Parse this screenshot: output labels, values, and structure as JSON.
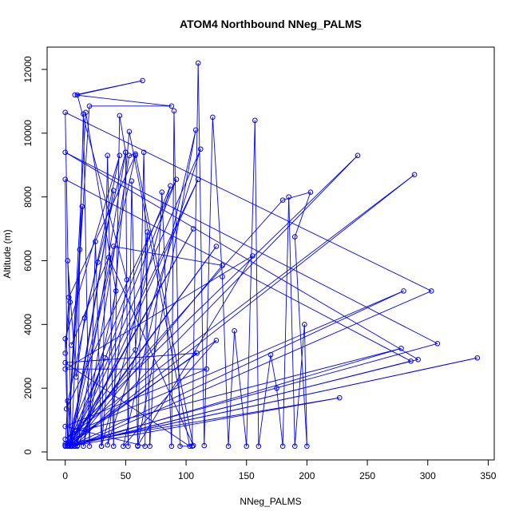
{
  "chart_data": {
    "type": "line",
    "title": "ATOM4 Northbound NNeg_PALMS",
    "xlabel": "NNeg_PALMS",
    "ylabel": "Altitude (m)",
    "xlim": [
      -15,
      355
    ],
    "ylim": [
      -250,
      12700
    ],
    "x_ticks": [
      0,
      50,
      100,
      150,
      200,
      250,
      300,
      350
    ],
    "y_ticks": [
      0,
      2000,
      4000,
      6000,
      8000,
      10000,
      12000
    ],
    "grid": false,
    "color": "#0000ff",
    "marker": "open-circle",
    "series": [
      {
        "points": [
          [
            0,
            180
          ],
          [
            2,
            1600
          ],
          [
            5,
            180
          ],
          [
            8,
            180
          ],
          [
            10,
            200
          ],
          [
            12,
            6350
          ],
          [
            15,
            10600
          ],
          [
            20,
            180
          ],
          [
            25,
            6600
          ],
          [
            30,
            180
          ],
          [
            35,
            9300
          ],
          [
            40,
            180
          ],
          [
            45,
            10550
          ],
          [
            50,
            9400
          ],
          [
            52,
            180
          ],
          [
            55,
            8500
          ],
          [
            60,
            180
          ],
          [
            65,
            9400
          ],
          [
            70,
            180
          ],
          [
            80,
            8150
          ],
          [
            88,
            180
          ],
          [
            90,
            10700
          ],
          [
            95,
            180
          ],
          [
            105,
            180
          ],
          [
            110,
            12200
          ],
          [
            115,
            200
          ],
          [
            122,
            10500
          ],
          [
            130,
            5500
          ],
          [
            135,
            180
          ],
          [
            140,
            3800
          ],
          [
            150,
            180
          ],
          [
            157,
            10400
          ],
          [
            160,
            180
          ],
          [
            170,
            3050
          ],
          [
            175,
            2000
          ],
          [
            180,
            180
          ],
          [
            185,
            8000
          ],
          [
            190,
            180
          ],
          [
            198,
            4000
          ],
          [
            200,
            180
          ],
          [
            190,
            6750
          ],
          [
            203,
            8150
          ],
          [
            180,
            7900
          ],
          [
            0,
            250
          ],
          [
            227,
            1700
          ],
          [
            5,
            180
          ],
          [
            278,
            3250
          ],
          [
            6,
            600
          ],
          [
            280,
            5050
          ],
          [
            4,
            180
          ],
          [
            292,
            2900
          ],
          [
            0,
            9400
          ],
          [
            308,
            3400
          ],
          [
            0,
            180
          ],
          [
            341,
            2950
          ],
          [
            3,
            200
          ],
          [
            289,
            8700
          ],
          [
            0,
            400
          ],
          [
            242,
            9300
          ],
          [
            8,
            180
          ],
          [
            303,
            5050
          ],
          [
            0,
            10650
          ],
          [
            5,
            180
          ],
          [
            286,
            2850
          ],
          [
            0,
            8550
          ],
          [
            2,
            180
          ],
          [
            20,
            10850
          ],
          [
            88,
            10850
          ],
          [
            8,
            11200
          ],
          [
            64,
            11650
          ],
          [
            10,
            11200
          ],
          [
            51,
            5400
          ],
          [
            35,
            220
          ],
          [
            112,
            9500
          ],
          [
            4,
            180
          ],
          [
            92,
            8550
          ],
          [
            1,
            1350
          ],
          [
            45,
            9300
          ],
          [
            0,
            3550
          ],
          [
            2,
            180
          ],
          [
            14,
            7700
          ],
          [
            5,
            200
          ],
          [
            40,
            8200
          ],
          [
            4,
            180
          ],
          [
            58,
            9300
          ],
          [
            3,
            4850
          ],
          [
            0,
            3100
          ],
          [
            4,
            4700
          ],
          [
            2,
            6000
          ],
          [
            9,
            2350
          ],
          [
            16,
            4200
          ],
          [
            27,
            5950
          ],
          [
            50,
            9400
          ],
          [
            10,
            180
          ],
          [
            110,
            8550
          ],
          [
            4,
            180
          ],
          [
            106,
            7000
          ],
          [
            5,
            180
          ],
          [
            125,
            6450
          ],
          [
            6,
            180
          ],
          [
            130,
            5850
          ],
          [
            40,
            6450
          ],
          [
            2,
            180
          ],
          [
            109,
            3100
          ],
          [
            0,
            2800
          ],
          [
            103,
            180
          ],
          [
            53,
            10050
          ],
          [
            30,
            180
          ],
          [
            87,
            8350
          ],
          [
            0,
            200
          ],
          [
            125,
            3500
          ],
          [
            48,
            180
          ],
          [
            108,
            10100
          ],
          [
            60,
            200
          ],
          [
            155,
            6150
          ],
          [
            0,
            2600
          ],
          [
            117,
            2600
          ],
          [
            0,
            800
          ],
          [
            66,
            180
          ],
          [
            68,
            6900
          ],
          [
            58,
            3200
          ],
          [
            2,
            200
          ],
          [
            33,
            2950
          ],
          [
            2,
            180
          ],
          [
            17,
            10650
          ],
          [
            42,
            5050
          ],
          [
            15,
            180
          ],
          [
            53,
            9300
          ],
          [
            58,
            9350
          ],
          [
            106,
            200
          ],
          [
            36,
            6100
          ],
          [
            5,
            3350
          ]
        ]
      }
    ]
  }
}
